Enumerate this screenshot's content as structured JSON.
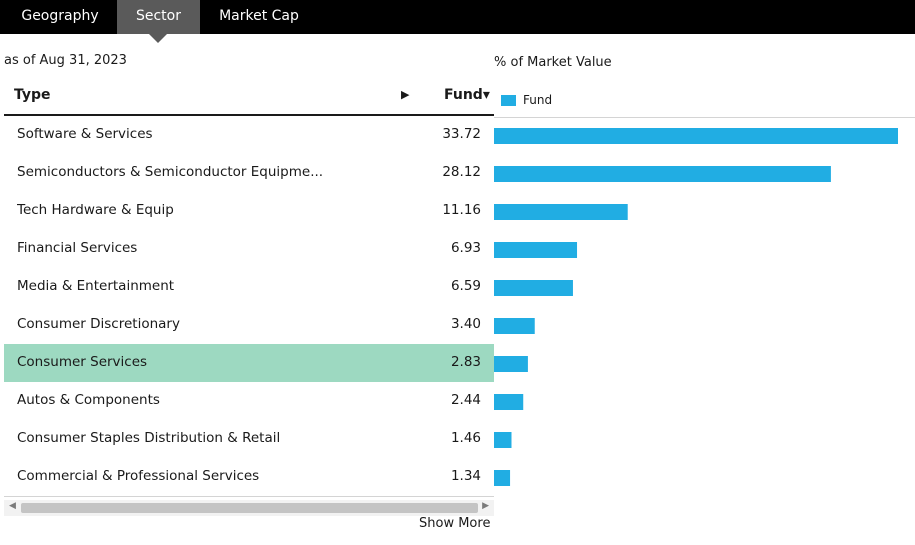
{
  "tabs": [
    {
      "label": "Geography"
    },
    {
      "label": "Sector"
    },
    {
      "label": "Market Cap"
    }
  ],
  "active_tab": "Sector",
  "as_of": "as of Aug 31, 2023",
  "table": {
    "col_type": "Type",
    "col_fund": "Fund",
    "sort_indicator": "▾",
    "expand_indicator": "▶",
    "show_more": "Show More"
  },
  "chart_data": {
    "type": "bar",
    "orientation": "horizontal",
    "title": "% of Market Value",
    "series": [
      {
        "name": "Fund",
        "color": "#21ade3"
      }
    ],
    "categories": [
      "Software & Services",
      "Semiconductors & Semiconductor Equipme...",
      "Tech Hardware & Equip",
      "Financial Services",
      "Media & Entertainment",
      "Consumer Discretionary",
      "Consumer Services",
      "Autos & Components",
      "Consumer Staples Distribution & Retail",
      "Commercial & Professional Services"
    ],
    "values": [
      33.72,
      28.12,
      11.16,
      6.93,
      6.59,
      3.4,
      2.83,
      2.44,
      1.46,
      1.34
    ],
    "value_labels": [
      "33.72",
      "28.12",
      "11.16",
      "6.93",
      "6.59",
      "3.40",
      "2.83",
      "2.44",
      "1.46",
      "1.34"
    ],
    "highlighted_category": "Consumer Services",
    "highlight_color": "#9dd9c1",
    "legend": "top-left",
    "grid": false
  }
}
